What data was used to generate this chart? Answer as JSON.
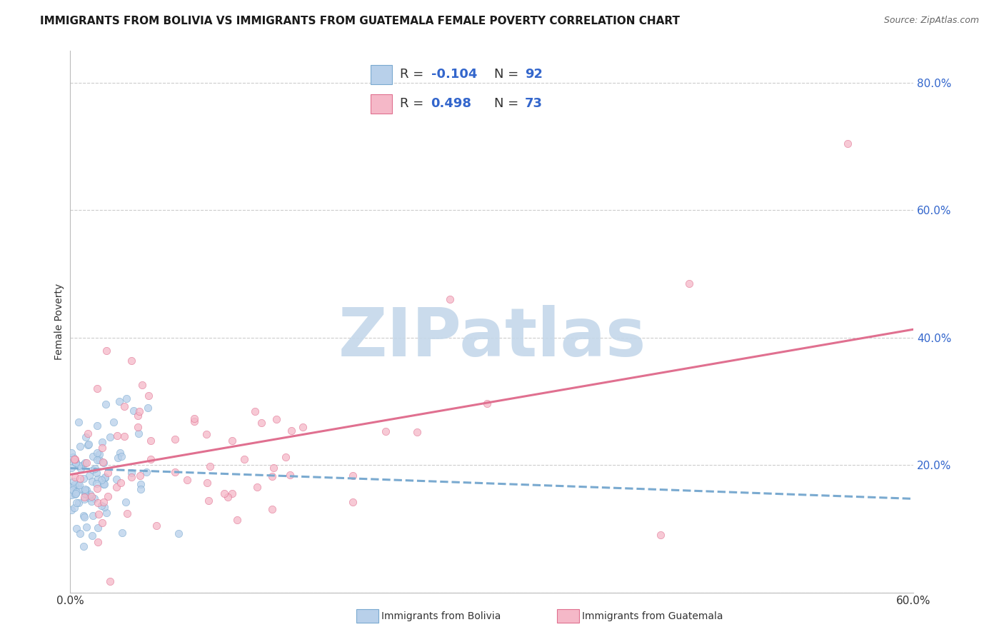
{
  "title": "IMMIGRANTS FROM BOLIVIA VS IMMIGRANTS FROM GUATEMALA FEMALE POVERTY CORRELATION CHART",
  "source": "Source: ZipAtlas.com",
  "ylabel": "Female Poverty",
  "xlim": [
    0.0,
    0.6
  ],
  "ylim": [
    0.0,
    0.85
  ],
  "ytick_vals": [
    0.0,
    0.2,
    0.4,
    0.6,
    0.8
  ],
  "ytick_labels": [
    "",
    "20.0%",
    "40.0%",
    "60.0%",
    "80.0%"
  ],
  "xtick_vals": [
    0.0,
    0.1,
    0.2,
    0.3,
    0.4,
    0.5,
    0.6
  ],
  "xtick_labels": [
    "0.0%",
    "",
    "",
    "",
    "",
    "",
    "60.0%"
  ],
  "bolivia_fill": "#b8d0ea",
  "bolivia_edge": "#7aaad0",
  "guatemala_fill": "#f5b8c8",
  "guatemala_edge": "#e07090",
  "trendline_bolivia_color": "#7aaad0",
  "trendline_guatemala_color": "#e07090",
  "R_bolivia": -0.104,
  "N_bolivia": 92,
  "R_guatemala": 0.498,
  "N_guatemala": 73,
  "watermark_text": "ZIPatlas",
  "watermark_color": "#c5d8ea",
  "background_color": "#ffffff",
  "grid_color": "#cccccc",
  "title_color": "#1a1a1a",
  "source_color": "#666666",
  "ytick_color": "#3366cc",
  "xtick_color": "#333333",
  "ylabel_color": "#333333",
  "legend_text_color": "#333333",
  "legend_value_color": "#3366cc",
  "trendline_bolivia_slope": -0.08,
  "trendline_bolivia_intercept": 0.195,
  "trendline_guatemala_slope": 0.38,
  "trendline_guatemala_intercept": 0.185,
  "trendline_bolivia_xstart": 0.0,
  "trendline_bolivia_xend": 0.6,
  "trendline_guatemala_xstart": 0.0,
  "trendline_guatemala_xend": 0.6,
  "scatter_size": 55,
  "scatter_alpha": 0.75,
  "scatter_linewidth": 0.5,
  "bottom_legend_bolivia_color": "#7aaad0",
  "bottom_legend_guatemala_color": "#e07090"
}
